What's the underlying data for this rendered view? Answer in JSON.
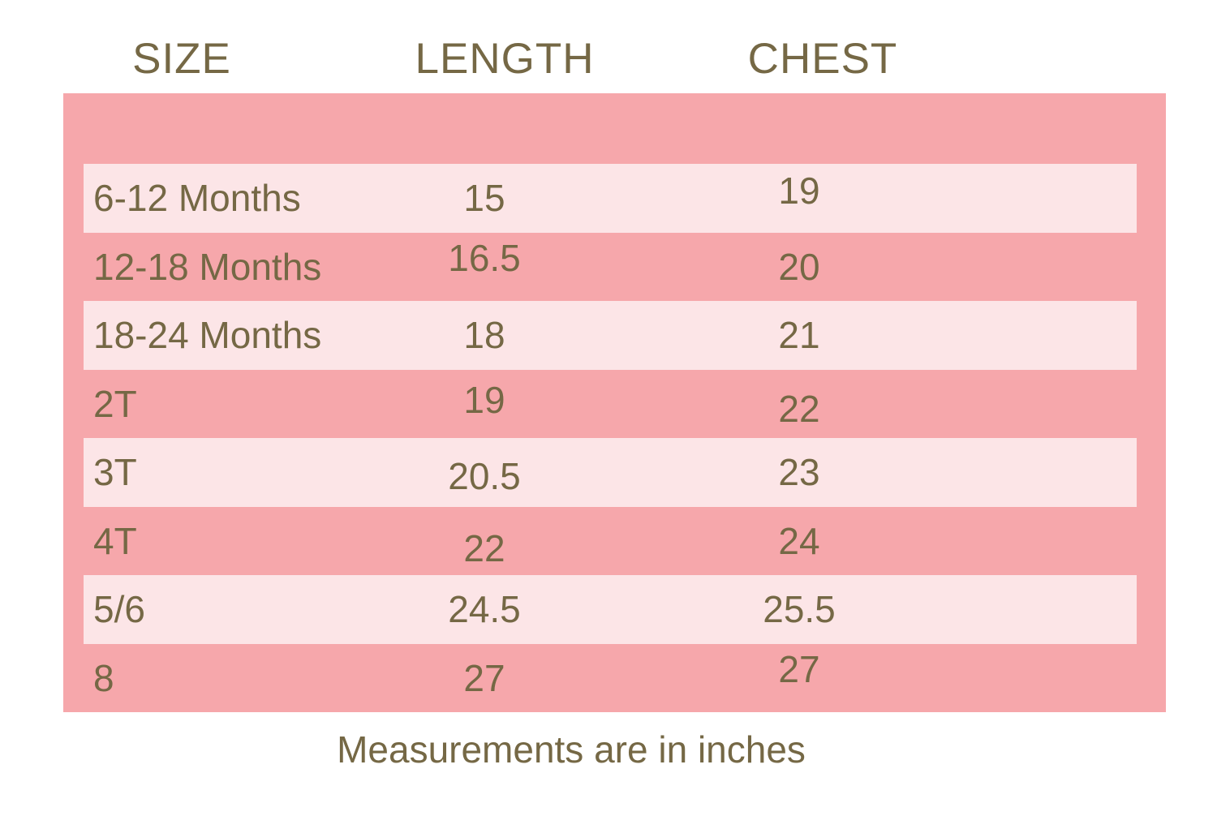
{
  "chart_data": {
    "type": "table",
    "title": "",
    "columns": [
      "SIZE",
      "LENGTH",
      "CHEST"
    ],
    "rows": [
      {
        "size": "6-12 Months",
        "length": "15",
        "chest": "19"
      },
      {
        "size": "12-18 Months",
        "length": "16.5",
        "chest": "20"
      },
      {
        "size": "18-24 Months",
        "length": "18",
        "chest": "21"
      },
      {
        "size": "2T",
        "length": "19",
        "chest": "22"
      },
      {
        "size": "3T",
        "length": "20.5",
        "chest": "23"
      },
      {
        "size": "4T",
        "length": "22",
        "chest": "24"
      },
      {
        "size": "5/6",
        "length": "24.5",
        "chest": "25.5"
      },
      {
        "size": "8",
        "length": "27",
        "chest": "27"
      }
    ],
    "note": "Measurements are in inches"
  },
  "colors": {
    "panel_pink": "#f6a7ab",
    "stripe_light_pink": "#fce5e7",
    "text_olive": "#756845",
    "background": "#ffffff"
  }
}
